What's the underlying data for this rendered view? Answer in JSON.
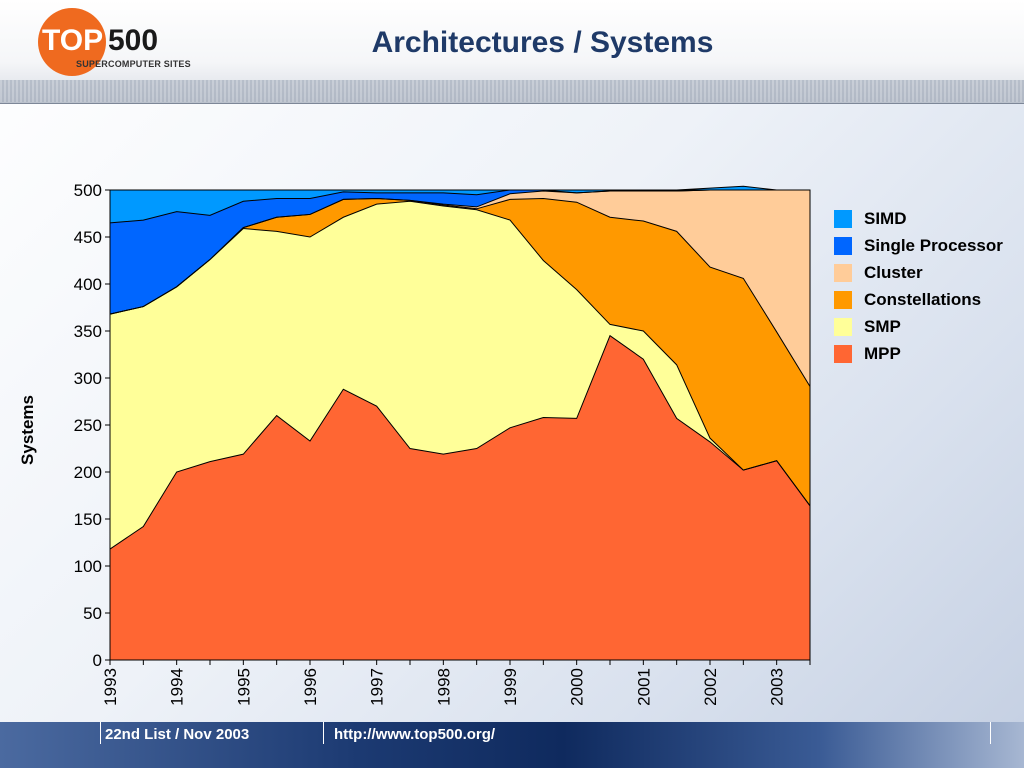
{
  "slide": {
    "title": "Architectures / Systems",
    "logo": {
      "brand": "TOP500",
      "brand_part1": "TOP",
      "brand_part2": "500",
      "subtitle": "SUPERCOMPUTER SITES"
    },
    "footer": {
      "list_label": "22nd List / Nov 2003",
      "url": "http://www.top500.org/"
    }
  },
  "colors": {
    "MPP": "#ff6633",
    "SMP": "#ffff99",
    "Constellations": "#ff9900",
    "Cluster": "#ffcc99",
    "Single Processor": "#0066ff",
    "SIMD": "#0099ff",
    "title": "#1f3a68"
  },
  "chart_data": {
    "type": "area",
    "stacked": true,
    "ylabel": "Systems",
    "xlabel": "",
    "ylim": [
      0,
      500
    ],
    "yticks": [
      0,
      50,
      100,
      150,
      200,
      250,
      300,
      350,
      400,
      450,
      500
    ],
    "xticks": [
      "1993",
      "1994",
      "1995",
      "1996",
      "1997",
      "1998",
      "1999",
      "2000",
      "2001",
      "2002",
      "2003"
    ],
    "x": [
      1993.0,
      1993.5,
      1994.0,
      1994.5,
      1995.0,
      1995.5,
      1996.0,
      1996.5,
      1997.0,
      1997.5,
      1998.0,
      1998.5,
      1999.0,
      1999.5,
      2000.0,
      2000.5,
      2001.0,
      2001.5,
      2002.0,
      2002.5,
      2003.0,
      2003.5
    ],
    "legend_position": "right",
    "grid": false,
    "series": [
      {
        "name": "MPP",
        "values": [
          118,
          142,
          200,
          211,
          219,
          260,
          233,
          288,
          270,
          225,
          219,
          225,
          247,
          258,
          257,
          345,
          320,
          257,
          232,
          202,
          212,
          164
        ]
      },
      {
        "name": "SMP",
        "values": [
          250,
          234,
          197,
          215,
          240,
          196,
          217,
          183,
          215,
          263,
          264,
          254,
          221,
          167,
          137,
          12,
          30,
          57,
          4,
          0,
          0,
          0
        ]
      },
      {
        "name": "Constellations",
        "values": [
          0,
          0,
          0,
          0,
          1,
          15,
          24,
          19,
          6,
          1,
          1,
          1,
          22,
          66,
          93,
          114,
          117,
          142,
          182,
          204,
          137,
          127
        ]
      },
      {
        "name": "Cluster",
        "values": [
          0,
          0,
          0,
          0,
          0,
          0,
          0,
          0,
          0,
          0,
          1,
          2,
          6,
          8,
          10,
          28,
          32,
          43,
          82,
          94,
          151,
          209
        ]
      },
      {
        "name": "Single Processor",
        "values": [
          97,
          92,
          80,
          47,
          28,
          20,
          17,
          8,
          6,
          8,
          12,
          13,
          4,
          1,
          0,
          0,
          0,
          0,
          0,
          0,
          0,
          0
        ]
      },
      {
        "name": "SIMD",
        "values": [
          35,
          32,
          23,
          27,
          12,
          9,
          9,
          2,
          3,
          3,
          3,
          5,
          0,
          0,
          3,
          1,
          1,
          1,
          2,
          4,
          0,
          0
        ]
      }
    ],
    "legend_order": [
      "SIMD",
      "Single Processor",
      "Cluster",
      "Constellations",
      "SMP",
      "MPP"
    ]
  }
}
